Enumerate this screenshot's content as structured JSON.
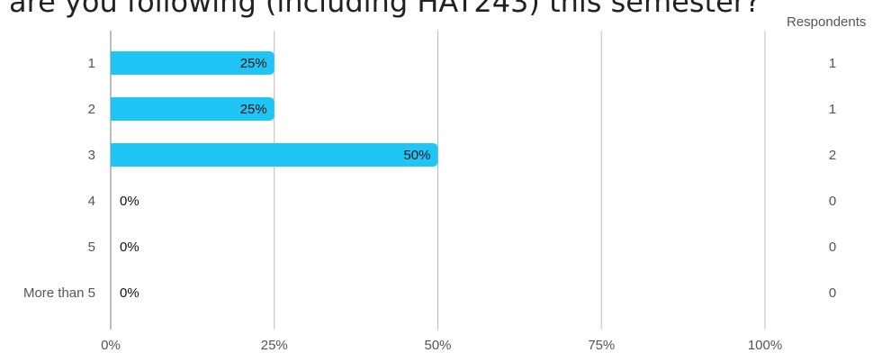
{
  "chart_data": {
    "type": "bar",
    "orientation": "horizontal",
    "title": "are you following (including HAT243) this semester?",
    "categories": [
      "1",
      "2",
      "3",
      "4",
      "5",
      "More than 5"
    ],
    "values": [
      25,
      25,
      50,
      0,
      0,
      0
    ],
    "value_labels": [
      "25%",
      "25%",
      "50%",
      "0%",
      "0%",
      "0%"
    ],
    "respondents_header": "Respondents",
    "respondents": [
      "1",
      "1",
      "2",
      "0",
      "0",
      "0"
    ],
    "xlim": [
      0,
      100
    ],
    "x_ticks": [
      0,
      25,
      50,
      75,
      100
    ],
    "x_tick_labels": [
      "0%",
      "25%",
      "50%",
      "75%",
      "100%"
    ],
    "grid": true,
    "bar_color": "#1ec5f5",
    "grid_color": "#bdbdbd"
  }
}
